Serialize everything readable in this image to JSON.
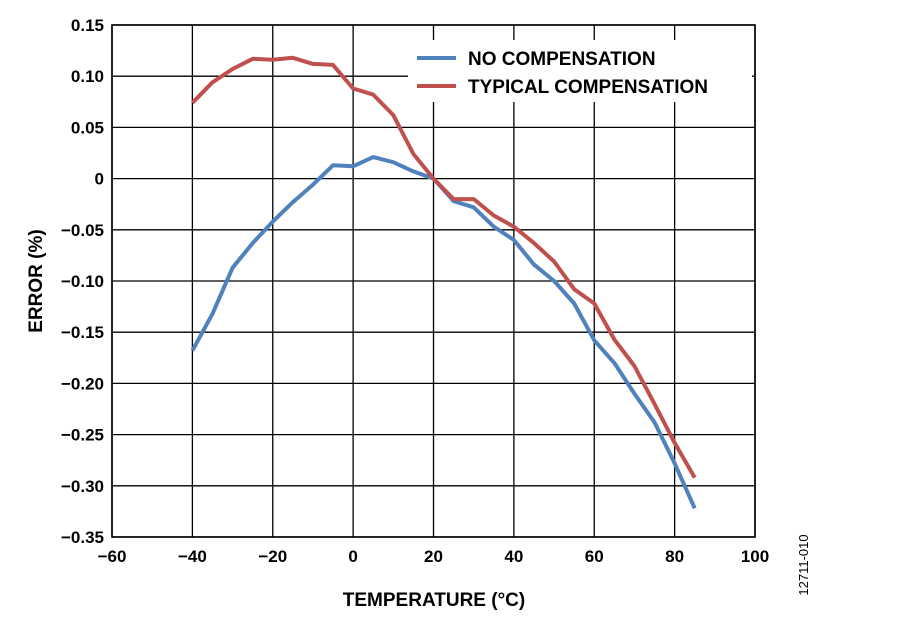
{
  "chart_data": {
    "type": "line",
    "xlabel": "TEMPERATURE (°C)",
    "ylabel": "ERROR (%)",
    "xlim": [
      -60,
      100
    ],
    "ylim": [
      -0.35,
      0.15
    ],
    "x_ticks": [
      -60,
      -40,
      -20,
      0,
      20,
      40,
      60,
      80,
      100
    ],
    "x_tick_labels": [
      "−60",
      "−40",
      "−20",
      "0",
      "20",
      "40",
      "60",
      "80",
      "100"
    ],
    "y_ticks": [
      0.15,
      0.1,
      0.05,
      0,
      -0.05,
      -0.1,
      -0.15,
      -0.2,
      -0.25,
      -0.3,
      -0.35
    ],
    "y_tick_labels": [
      "0.15",
      "0.10",
      "0.05",
      "0",
      "−0.05",
      "−0.10",
      "−0.15",
      "−0.20",
      "−0.25",
      "−0.30",
      "−0.35"
    ],
    "grid": true,
    "legend_position": "top-right",
    "series": [
      {
        "name": "NO COMPENSATION",
        "color": "#4f81bd",
        "x": [
          -40,
          -35,
          -30,
          -25,
          -20,
          -15,
          -10,
          -5,
          0,
          5,
          10,
          15,
          20,
          25,
          30,
          35,
          40,
          45,
          50,
          55,
          60,
          65,
          70,
          75,
          80,
          85
        ],
        "y": [
          -0.168,
          -0.132,
          -0.087,
          -0.063,
          -0.042,
          -0.023,
          -0.006,
          0.013,
          0.012,
          0.021,
          0.016,
          0.007,
          0.0,
          -0.022,
          -0.028,
          -0.047,
          -0.06,
          -0.084,
          -0.1,
          -0.122,
          -0.158,
          -0.18,
          -0.21,
          -0.238,
          -0.278,
          -0.322
        ]
      },
      {
        "name": "TYPICAL COMPENSATION",
        "color": "#c0504d",
        "x": [
          -40,
          -35,
          -30,
          -25,
          -20,
          -15,
          -10,
          -5,
          0,
          5,
          10,
          15,
          20,
          25,
          30,
          35,
          40,
          45,
          50,
          55,
          60,
          65,
          70,
          75,
          80,
          85
        ],
        "y": [
          0.074,
          0.094,
          0.107,
          0.117,
          0.116,
          0.118,
          0.112,
          0.111,
          0.088,
          0.082,
          0.062,
          0.024,
          0.0,
          -0.02,
          -0.02,
          -0.036,
          -0.047,
          -0.063,
          -0.081,
          -0.108,
          -0.122,
          -0.157,
          -0.183,
          -0.22,
          -0.258,
          -0.292
        ]
      }
    ],
    "figure_id": "12711-010"
  }
}
